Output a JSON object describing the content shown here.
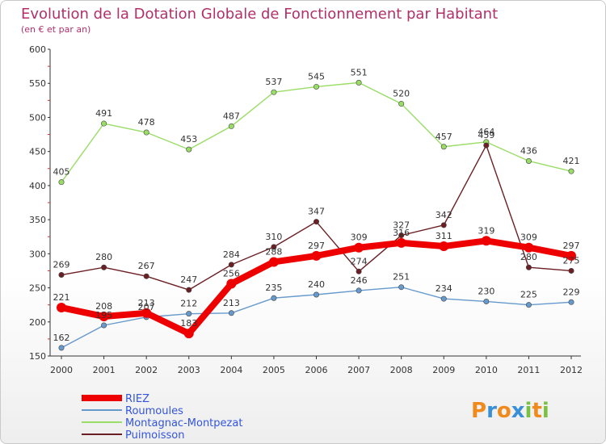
{
  "chart_data": {
    "type": "line",
    "title": "Evolution de la Dotation Globale de Fonctionnement par Habitant",
    "subtitle": "(en € et par an)",
    "categories": [
      "2000",
      "2001",
      "2002",
      "2003",
      "2004",
      "2005",
      "2006",
      "2007",
      "2008",
      "2009",
      "2010",
      "2011",
      "2012"
    ],
    "ylim": [
      150,
      600
    ],
    "yticks": [
      150,
      200,
      250,
      300,
      350,
      400,
      450,
      500,
      550,
      600
    ],
    "grid": false,
    "legend_position": "bottom-left",
    "series": [
      {
        "name": "RIEZ",
        "color": "#ee0000",
        "values": [
          221,
          208,
          213,
          183,
          256,
          288,
          297,
          309,
          316,
          311,
          319,
          309,
          297
        ]
      },
      {
        "name": "Roumoules",
        "color": "#6699cc",
        "values": [
          162,
          195,
          207,
          212,
          213,
          235,
          240,
          246,
          251,
          234,
          230,
          225,
          229
        ]
      },
      {
        "name": "Montagnac-Montpezat",
        "color": "#99dd66",
        "values": [
          405,
          491,
          478,
          453,
          487,
          537,
          545,
          551,
          520,
          457,
          464,
          436,
          421
        ]
      },
      {
        "name": "Puimoisson",
        "color": "#6b1f24",
        "values": [
          269,
          280,
          267,
          247,
          284,
          310,
          347,
          274,
          327,
          342,
          459,
          280,
          275
        ]
      }
    ]
  },
  "logo": {
    "letters": [
      "P",
      "r",
      "o",
      "x",
      "i",
      "t",
      "i"
    ],
    "colors": [
      "#f08a1c",
      "#3a8fd6",
      "#f08a1c",
      "#3a8fd6",
      "#7ac143",
      "#f08a1c",
      "#7ac143"
    ]
  }
}
